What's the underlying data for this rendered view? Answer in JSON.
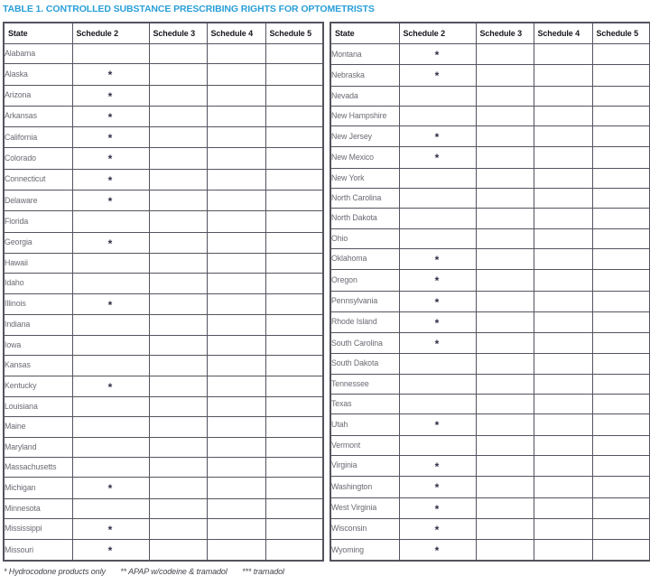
{
  "title": "TABLE 1. CONTROLLED SUBSTANCE PRESCRIBING RIGHTS FOR OPTOMETRISTS",
  "columns": [
    "State",
    "Schedule 2",
    "Schedule 3",
    "Schedule 4",
    "Schedule 5"
  ],
  "colors": {
    "title": "#2a9fd8",
    "grid": "#55525e",
    "schedule2": "#d8d4e9",
    "schedule3": "#b2abd5",
    "schedule4": "#a098c9",
    "schedule5": "#8679ba"
  },
  "footnote": {
    "notes": [
      "* Hydrocodone products only",
      "** APAP w/codeine & tramadol",
      "*** tramadol"
    ]
  },
  "tables": [
    {
      "rows": [
        {
          "state": "Alabama",
          "s2": false,
          "mark2": "",
          "s3": true,
          "s4": true,
          "mark4": "",
          "s5": true
        },
        {
          "state": "Alaska",
          "s2": true,
          "mark2": "*",
          "s3": true,
          "s4": true,
          "mark4": "",
          "s5": true
        },
        {
          "state": "Arizona",
          "s2": true,
          "mark2": "*",
          "s3": true,
          "s4": false,
          "mark4": "",
          "s5": false
        },
        {
          "state": "Arkansas",
          "s2": true,
          "mark2": "*",
          "s3": true,
          "s4": true,
          "mark4": "",
          "s5": true
        },
        {
          "state": "California",
          "s2": true,
          "mark2": "*",
          "s3": true,
          "s4": false,
          "mark4": "",
          "s5": false
        },
        {
          "state": "Colorado",
          "s2": true,
          "mark2": "*",
          "s3": true,
          "s4": true,
          "mark4": "",
          "s5": true
        },
        {
          "state": "Connecticut",
          "s2": true,
          "mark2": "*",
          "s3": true,
          "s4": true,
          "mark4": "",
          "s5": true
        },
        {
          "state": "Delaware",
          "s2": true,
          "mark2": "*",
          "s3": true,
          "s4": true,
          "mark4": "",
          "s5": true
        },
        {
          "state": "Florida",
          "s2": false,
          "mark2": "",
          "s3": true,
          "s4": true,
          "mark4": "**",
          "s5": false
        },
        {
          "state": "Georgia",
          "s2": true,
          "mark2": "*",
          "s3": true,
          "s4": true,
          "mark4": "",
          "s5": true
        },
        {
          "state": "Hawaii",
          "s2": false,
          "mark2": "",
          "s3": false,
          "s4": false,
          "mark4": "",
          "s5": false
        },
        {
          "state": "Idaho",
          "s2": true,
          "mark2": "",
          "s3": true,
          "s4": true,
          "mark4": "",
          "s5": true
        },
        {
          "state": "Illinois",
          "s2": true,
          "mark2": "*",
          "s3": true,
          "s4": true,
          "mark4": "",
          "s5": true
        },
        {
          "state": "Indiana",
          "s2": false,
          "mark2": "",
          "s3": false,
          "s4": true,
          "mark4": "***",
          "s5": false
        },
        {
          "state": "Iowa",
          "s2": true,
          "mark2": "",
          "s3": true,
          "s4": true,
          "mark4": "",
          "s5": true
        },
        {
          "state": "Kansas",
          "s2": true,
          "mark2": "",
          "s3": true,
          "s4": true,
          "mark4": "",
          "s5": true
        },
        {
          "state": "Kentucky",
          "s2": true,
          "mark2": "*",
          "s3": true,
          "s4": true,
          "mark4": "",
          "s5": true
        },
        {
          "state": "Louisiana",
          "s2": true,
          "mark2": "",
          "s3": true,
          "s4": true,
          "mark4": "",
          "s5": true
        },
        {
          "state": "Maine",
          "s2": false,
          "mark2": "",
          "s3": true,
          "s4": true,
          "mark4": "",
          "s5": true
        },
        {
          "state": "Maryland",
          "s2": false,
          "mark2": "",
          "s3": false,
          "s4": false,
          "mark4": "",
          "s5": false
        },
        {
          "state": "Massachusetts",
          "s2": false,
          "mark2": "",
          "s3": true,
          "s4": true,
          "mark4": "",
          "s5": true
        },
        {
          "state": "Michigan",
          "s2": true,
          "mark2": "*",
          "s3": true,
          "s4": true,
          "mark4": "",
          "s5": true
        },
        {
          "state": "Minnesota",
          "s2": false,
          "mark2": "",
          "s3": false,
          "s4": true,
          "mark4": "",
          "s5": true
        },
        {
          "state": "Mississippi",
          "s2": true,
          "mark2": "*",
          "s3": true,
          "s4": true,
          "mark4": "",
          "s5": true
        },
        {
          "state": "Missouri",
          "s2": true,
          "mark2": "*",
          "s3": true,
          "s4": true,
          "mark4": "",
          "s5": true
        }
      ]
    },
    {
      "rows": [
        {
          "state": "Montana",
          "s2": true,
          "mark2": "*",
          "s3": true,
          "s4": true,
          "mark4": "",
          "s5": true
        },
        {
          "state": "Nebraska",
          "s2": true,
          "mark2": "*",
          "s3": true,
          "s4": true,
          "mark4": "",
          "s5": true
        },
        {
          "state": "Nevada",
          "s2": false,
          "mark2": "",
          "s3": true,
          "s4": true,
          "mark4": "",
          "s5": true
        },
        {
          "state": "New Hampshire",
          "s2": false,
          "mark2": "",
          "s3": true,
          "s4": true,
          "mark4": "",
          "s5": false
        },
        {
          "state": "New Jersey",
          "s2": true,
          "mark2": "*",
          "s3": true,
          "s4": true,
          "mark4": "",
          "s5": true
        },
        {
          "state": "New Mexico",
          "s2": true,
          "mark2": "*",
          "s3": true,
          "s4": true,
          "mark4": "",
          "s5": true
        },
        {
          "state": "New York",
          "s2": false,
          "mark2": "",
          "s3": false,
          "s4": false,
          "mark4": "",
          "s5": false
        },
        {
          "state": "North Carolina",
          "s2": true,
          "mark2": "",
          "s3": true,
          "s4": true,
          "mark4": "",
          "s5": true
        },
        {
          "state": "North Dakota",
          "s2": false,
          "mark2": "",
          "s3": true,
          "s4": false,
          "mark4": "",
          "s5": false
        },
        {
          "state": "Ohio",
          "s2": true,
          "mark2": "",
          "s3": true,
          "s4": true,
          "mark4": "",
          "s5": false
        },
        {
          "state": "Oklahoma",
          "s2": true,
          "mark2": "*",
          "s3": true,
          "s4": true,
          "mark4": "",
          "s5": true
        },
        {
          "state": "Oregon",
          "s2": true,
          "mark2": "*",
          "s3": true,
          "s4": true,
          "mark4": "",
          "s5": true
        },
        {
          "state": "Pennsylvania",
          "s2": true,
          "mark2": "*",
          "s3": true,
          "s4": true,
          "mark4": "",
          "s5": true
        },
        {
          "state": "Rhode Island",
          "s2": true,
          "mark2": "*",
          "s3": true,
          "s4": true,
          "mark4": "",
          "s5": true
        },
        {
          "state": "South Carolina",
          "s2": true,
          "mark2": "*",
          "s3": true,
          "s4": true,
          "mark4": "",
          "s5": true
        },
        {
          "state": "South Dakota",
          "s2": true,
          "mark2": "",
          "s3": true,
          "s4": true,
          "mark4": "",
          "s5": true
        },
        {
          "state": "Tennessee",
          "s2": true,
          "mark2": "",
          "s3": true,
          "s4": true,
          "mark4": "",
          "s5": true
        },
        {
          "state": "Texas",
          "s2": false,
          "mark2": "",
          "s3": true,
          "s4": true,
          "mark4": "",
          "s5": true
        },
        {
          "state": "Utah",
          "s2": true,
          "mark2": "*",
          "s3": true,
          "s4": true,
          "mark4": "",
          "s5": true
        },
        {
          "state": "Vermont",
          "s2": false,
          "mark2": "",
          "s3": true,
          "s4": true,
          "mark4": "",
          "s5": true
        },
        {
          "state": "Virginia",
          "s2": true,
          "mark2": "*",
          "s3": true,
          "s4": true,
          "mark4": "",
          "s5": false
        },
        {
          "state": "Washington",
          "s2": true,
          "mark2": "*",
          "s3": true,
          "s4": true,
          "mark4": "",
          "s5": true
        },
        {
          "state": "West Virginia",
          "s2": true,
          "mark2": "*",
          "s3": true,
          "s4": true,
          "mark4": "",
          "s5": true
        },
        {
          "state": "Wisconsin",
          "s2": true,
          "mark2": "*",
          "s3": true,
          "s4": true,
          "mark4": "",
          "s5": true
        },
        {
          "state": "Wyoming",
          "s2": true,
          "mark2": "*",
          "s3": true,
          "s4": true,
          "mark4": "",
          "s5": true
        }
      ]
    }
  ]
}
